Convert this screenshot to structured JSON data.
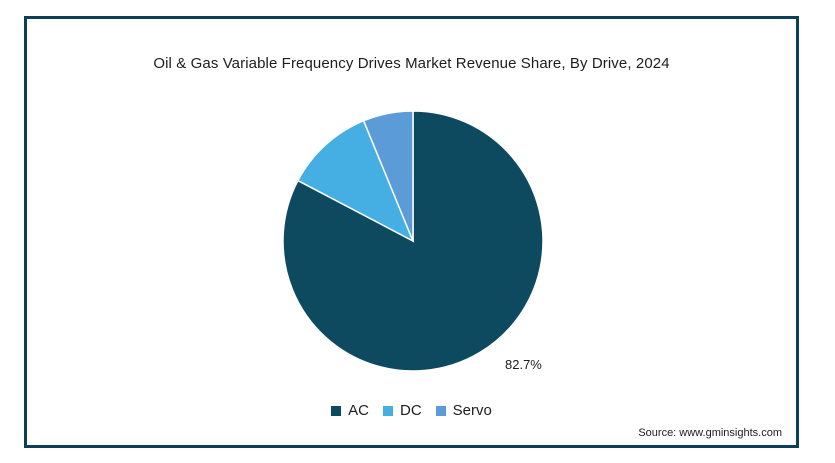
{
  "chart_data": {
    "type": "pie",
    "title": "Oil & Gas Variable Frequency Drives Market Revenue Share, By Drive, 2024",
    "categories": [
      "AC",
      "DC",
      "Servo"
    ],
    "values": [
      82.7,
      11.1,
      6.2
    ],
    "colors": [
      "#0d4a60",
      "#45aee3",
      "#5b9bd8"
    ],
    "data_labels": [
      "82.7%",
      "",
      ""
    ],
    "legend_position": "bottom-center",
    "start_angle_deg": 0,
    "direction": "clockwise"
  },
  "source": "Source: www.gminsights.com"
}
